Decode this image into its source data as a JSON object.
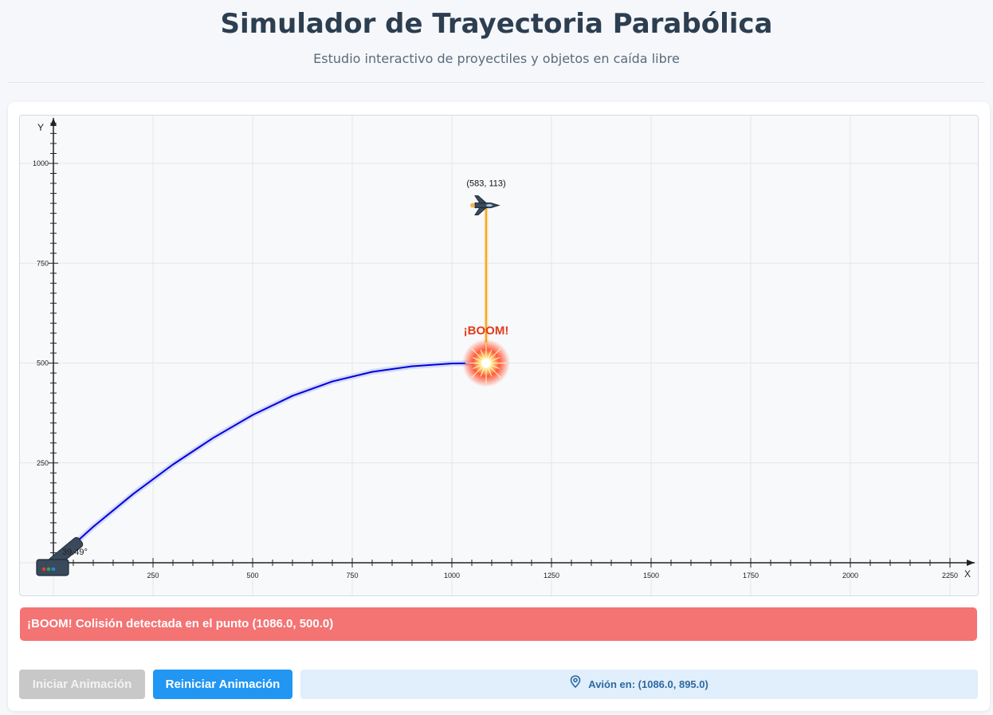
{
  "header": {
    "title": "Simulador de Trayectoria Parabólica",
    "subtitle": "Estudio interactivo de proyectiles y objetos en caída libre"
  },
  "chart_data": {
    "type": "scatter",
    "xlabel": "X",
    "ylabel": "Y",
    "xlim": [
      0,
      2250
    ],
    "ylim": [
      0,
      1000
    ],
    "x_ticks": [
      "250",
      "500",
      "750",
      "1000",
      "1250",
      "1500",
      "1750",
      "2000",
      "2250"
    ],
    "y_ticks": [
      "250",
      "500",
      "750",
      "1000"
    ],
    "grid": true,
    "series": [
      {
        "kind": "trajectory",
        "color": "#0000dd",
        "x": [
          0,
          100,
          200,
          300,
          400,
          500,
          600,
          700,
          800,
          900,
          1000,
          1086
        ],
        "y": [
          0,
          90,
          172,
          246,
          312,
          370,
          418,
          454,
          478,
          492,
          499,
          500
        ]
      },
      {
        "kind": "plane-drop",
        "color": "#f5a623",
        "x": [
          1086,
          1086
        ],
        "y": [
          895,
          500
        ]
      }
    ],
    "cannon_angle_label": "39.49°",
    "plane_label": "(583, 113)",
    "explosion_label": "¡BOOM!",
    "explosion_point": [
      1086,
      500
    ],
    "plane_point": [
      1086,
      895
    ]
  },
  "alert": {
    "text": "¡BOOM! Colisión detectada en el punto (1086.0, 500.0)",
    "color": "#f47373"
  },
  "controls": {
    "start_label": "Iniciar Animación",
    "reset_label": "Reiniciar Animación",
    "status_text": "Avión en: (1086.0, 895.0)",
    "status_icon": "map-pin-icon"
  }
}
